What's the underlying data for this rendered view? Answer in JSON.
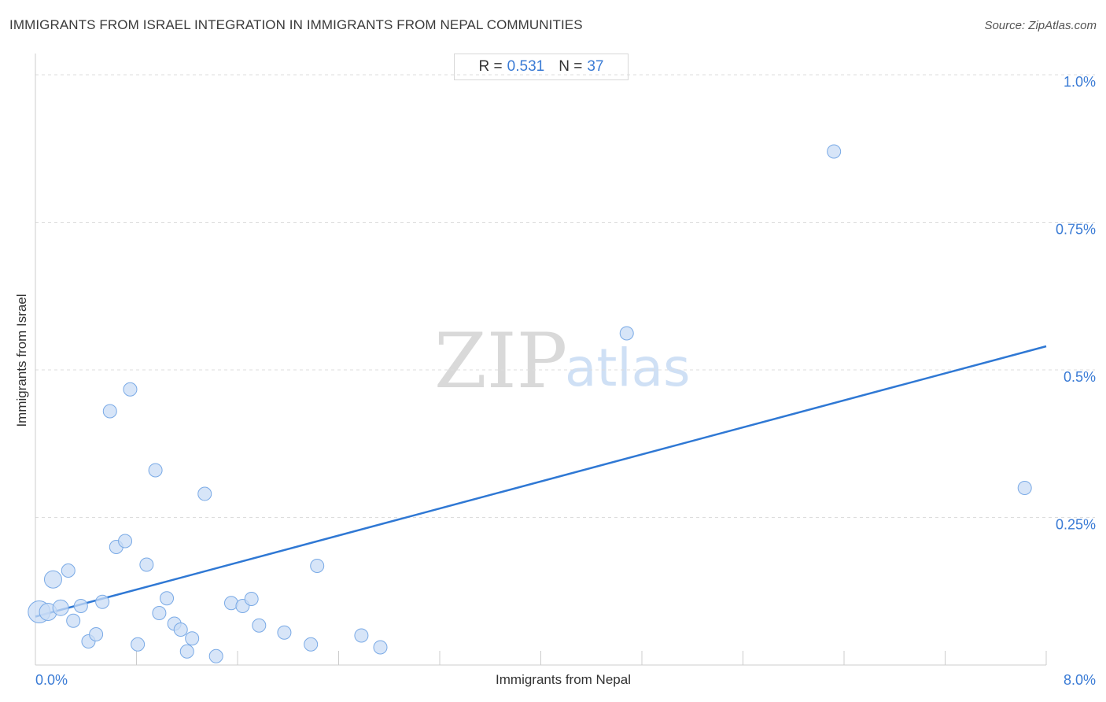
{
  "header": {
    "title": "IMMIGRANTS FROM ISRAEL INTEGRATION IN IMMIGRANTS FROM NEPAL COMMUNITIES",
    "source": "Source: ZipAtlas.com"
  },
  "stats": {
    "r_label": "R =",
    "r_value": "0.531",
    "n_label": "N =",
    "n_value": "37"
  },
  "watermark": {
    "zip": "ZIP",
    "atlas": "atlas"
  },
  "colors": {
    "point_fill": "#c9dcf5",
    "point_stroke": "#7aaae6",
    "trend_line": "#2f78d4",
    "tick_label": "#3a7bd5",
    "grid": "#dddddd"
  },
  "chart_data": {
    "type": "scatter",
    "title": "IMMIGRANTS FROM ISRAEL INTEGRATION IN IMMIGRANTS FROM NEPAL COMMUNITIES",
    "xlabel": "Immigrants from Nepal",
    "ylabel": "Immigrants from Israel",
    "xlim": [
      0,
      8.0
    ],
    "ylim": [
      0,
      1.0
    ],
    "x_tick_labels": [
      {
        "value": 0,
        "label": "0.0%"
      },
      {
        "value": 8.0,
        "label": "8.0%"
      }
    ],
    "y_tick_labels": [
      {
        "value": 0.25,
        "label": "0.25%"
      },
      {
        "value": 0.5,
        "label": "0.5%"
      },
      {
        "value": 0.75,
        "label": "0.75%"
      },
      {
        "value": 1.0,
        "label": "1.0%"
      }
    ],
    "x_minor_ticks": [
      0.8,
      1.6,
      2.4,
      3.2,
      4.0,
      4.8,
      5.6,
      6.4,
      7.2,
      8.0
    ],
    "grid": true,
    "trend_line": {
      "x": [
        0.0,
        8.0
      ],
      "y": [
        0.082,
        0.54
      ]
    },
    "points": [
      {
        "x": 0.03,
        "y": 0.09,
        "size": 3
      },
      {
        "x": 0.1,
        "y": 0.09,
        "size": 2
      },
      {
        "x": 0.14,
        "y": 0.145,
        "size": 2
      },
      {
        "x": 0.2,
        "y": 0.097,
        "size": 1.5
      },
      {
        "x": 0.26,
        "y": 0.16,
        "size": 1
      },
      {
        "x": 0.3,
        "y": 0.075,
        "size": 1
      },
      {
        "x": 0.36,
        "y": 0.1,
        "size": 1
      },
      {
        "x": 0.42,
        "y": 0.04,
        "size": 1
      },
      {
        "x": 0.48,
        "y": 0.052,
        "size": 1
      },
      {
        "x": 0.53,
        "y": 0.107,
        "size": 1
      },
      {
        "x": 0.59,
        "y": 0.43,
        "size": 1
      },
      {
        "x": 0.64,
        "y": 0.2,
        "size": 1
      },
      {
        "x": 0.71,
        "y": 0.21,
        "size": 1
      },
      {
        "x": 0.75,
        "y": 0.467,
        "size": 1
      },
      {
        "x": 0.81,
        "y": 0.035,
        "size": 1
      },
      {
        "x": 0.88,
        "y": 0.17,
        "size": 1
      },
      {
        "x": 0.95,
        "y": 0.33,
        "size": 1
      },
      {
        "x": 0.98,
        "y": 0.088,
        "size": 1
      },
      {
        "x": 1.04,
        "y": 0.113,
        "size": 1
      },
      {
        "x": 1.1,
        "y": 0.07,
        "size": 1
      },
      {
        "x": 1.15,
        "y": 0.06,
        "size": 1
      },
      {
        "x": 1.2,
        "y": 0.023,
        "size": 1
      },
      {
        "x": 1.24,
        "y": 0.045,
        "size": 1
      },
      {
        "x": 1.34,
        "y": 0.29,
        "size": 1
      },
      {
        "x": 1.43,
        "y": 0.015,
        "size": 1
      },
      {
        "x": 1.55,
        "y": 0.105,
        "size": 1
      },
      {
        "x": 1.64,
        "y": 0.1,
        "size": 1
      },
      {
        "x": 1.71,
        "y": 0.112,
        "size": 1
      },
      {
        "x": 1.77,
        "y": 0.067,
        "size": 1
      },
      {
        "x": 1.97,
        "y": 0.055,
        "size": 1
      },
      {
        "x": 2.18,
        "y": 0.035,
        "size": 1
      },
      {
        "x": 2.23,
        "y": 0.168,
        "size": 1
      },
      {
        "x": 2.58,
        "y": 0.05,
        "size": 1
      },
      {
        "x": 2.73,
        "y": 0.03,
        "size": 1
      },
      {
        "x": 4.68,
        "y": 0.562,
        "size": 1
      },
      {
        "x": 6.32,
        "y": 0.87,
        "size": 1
      },
      {
        "x": 7.83,
        "y": 0.3,
        "size": 1
      }
    ]
  }
}
